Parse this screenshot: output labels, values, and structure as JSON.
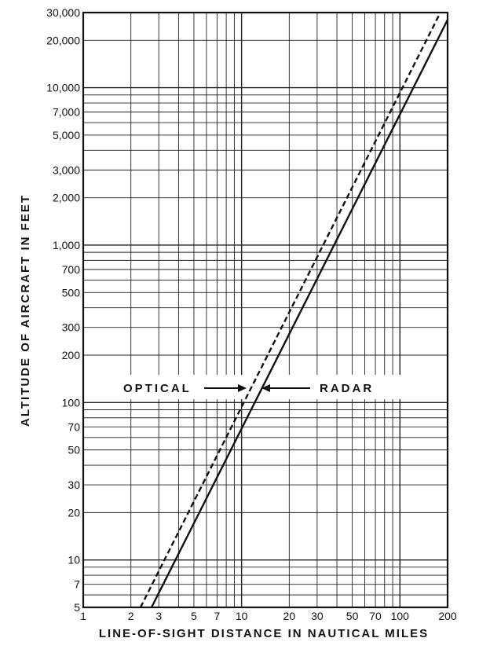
{
  "chart_data": {
    "type": "line",
    "xlabel": "LINE-OF-SIGHT DISTANCE IN NAUTICAL MILES",
    "ylabel": "ALTITUDE OF AIRCRAFT IN FEET",
    "x_scale": "log",
    "y_scale": "log",
    "xlim": [
      1,
      200
    ],
    "ylim": [
      5,
      30000
    ],
    "grid": true,
    "x_ticks": [
      1,
      2,
      3,
      5,
      7,
      10,
      20,
      30,
      50,
      70,
      100,
      200
    ],
    "x_tick_labels": [
      "1",
      "2",
      "3",
      "5",
      "7",
      "10",
      "20",
      "30",
      "50",
      "70",
      "100",
      "200"
    ],
    "y_ticks": [
      5,
      7,
      10,
      20,
      30,
      50,
      70,
      100,
      200,
      300,
      500,
      700,
      1000,
      2000,
      3000,
      5000,
      7000,
      10000,
      20000,
      30000
    ],
    "y_tick_labels": [
      "5",
      "7",
      "10",
      "20",
      "30",
      "50",
      "70",
      "100",
      "200",
      "300",
      "500",
      "700",
      "1,000",
      "2,000",
      "3,000",
      "5,000",
      "7,000",
      "10,000",
      "20,000",
      "30,000"
    ],
    "series": [
      {
        "name": "RADAR",
        "style": "solid",
        "x": [
          2.7,
          200
        ],
        "y": [
          5,
          27000
        ]
      },
      {
        "name": "OPTICAL",
        "style": "dashed",
        "x": [
          2.3,
          180
        ],
        "y": [
          5,
          30000
        ]
      }
    ],
    "annotations": [
      {
        "text": "OPTICAL",
        "arrow": "right"
      },
      {
        "text": "RADAR",
        "arrow": "left"
      }
    ]
  }
}
